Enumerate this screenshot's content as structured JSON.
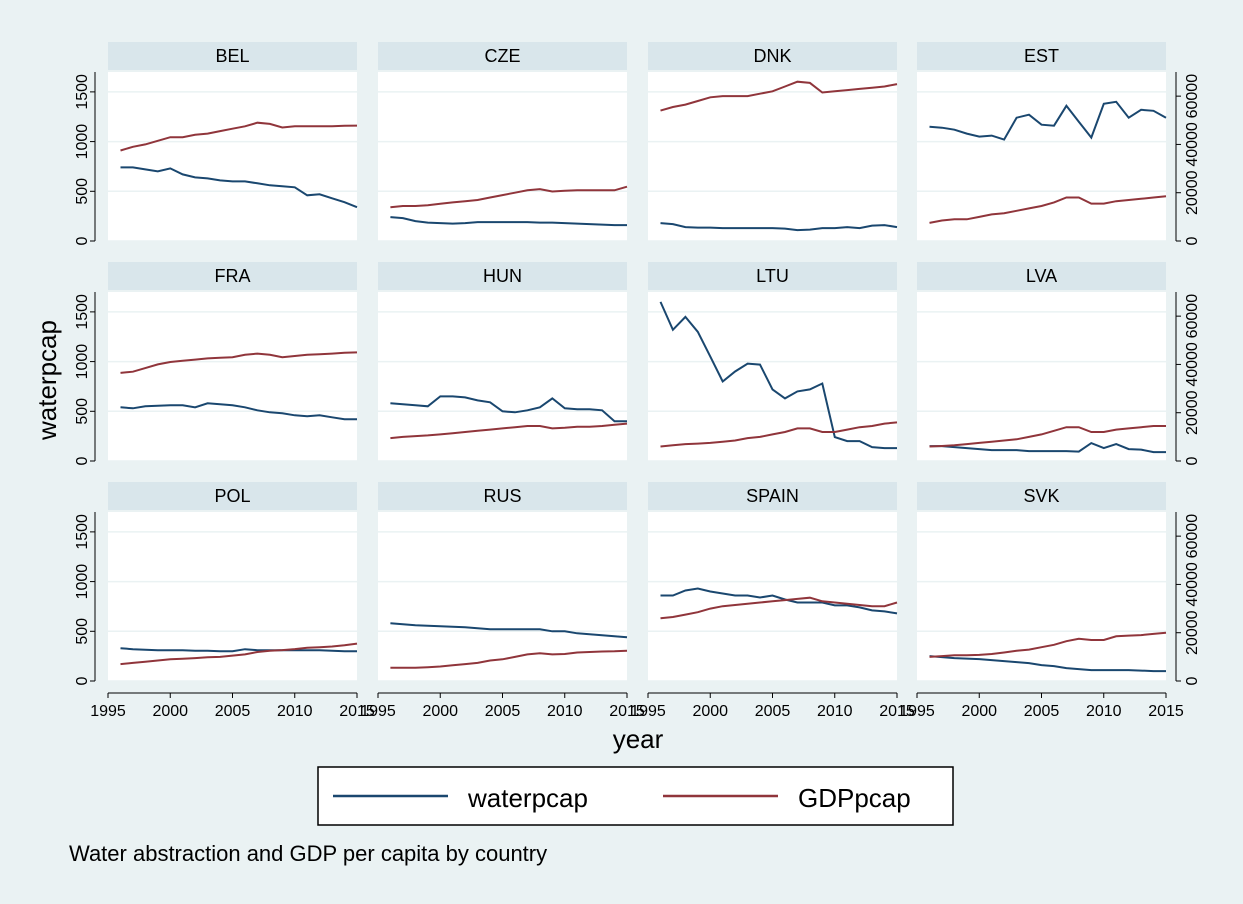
{
  "chart_data": {
    "type": "line",
    "note": "Water abstraction and GDP per capita by country",
    "xlabel": "year",
    "ylabel_left": "waterpcap",
    "xlim": [
      1995,
      2015
    ],
    "xticks": [
      1995,
      2000,
      2005,
      2010,
      2015
    ],
    "xtick_labels": [
      "1995",
      "2000",
      "2005",
      "2010",
      "2015"
    ],
    "ylim_left": [
      0,
      1700
    ],
    "yticks_left": [
      0,
      500,
      1000,
      1500
    ],
    "ytick_labels_left": [
      "0",
      "500",
      "1000",
      "1500"
    ],
    "ylim_right": [
      0,
      70000
    ],
    "yticks_right": [
      0,
      20000,
      40000,
      60000
    ],
    "ytick_labels_right": [
      "0",
      "20000",
      "40000",
      "60000"
    ],
    "legend": {
      "position": "bottom",
      "entries": [
        {
          "label": "waterpcap",
          "color": "#1a476f"
        },
        {
          "label": "GDPpcap",
          "color": "#90353b"
        }
      ]
    },
    "years": [
      1996,
      1997,
      1998,
      1999,
      2000,
      2001,
      2002,
      2003,
      2004,
      2005,
      2006,
      2007,
      2008,
      2009,
      2010,
      2011,
      2012,
      2013,
      2014,
      2015
    ],
    "panels": [
      {
        "title": "BEL",
        "water": [
          740,
          740,
          720,
          700,
          730,
          670,
          640,
          630,
          610,
          600,
          600,
          580,
          560,
          550,
          540,
          460,
          470,
          430,
          390,
          340
        ],
        "gdp": [
          37500,
          39000,
          40000,
          41500,
          43000,
          43000,
          44000,
          44500,
          45500,
          46500,
          47500,
          49000,
          48500,
          47000,
          47500,
          47500,
          47500,
          47500,
          47700,
          47800
        ]
      },
      {
        "title": "CZE",
        "water": [
          240,
          230,
          200,
          185,
          180,
          175,
          180,
          190,
          190,
          190,
          190,
          190,
          185,
          185,
          180,
          175,
          170,
          165,
          160,
          160
        ],
        "gdp": [
          14000,
          14500,
          14500,
          14800,
          15400,
          16000,
          16500,
          17000,
          18000,
          19000,
          20000,
          21000,
          21500,
          20500,
          20800,
          21000,
          21000,
          21000,
          21000,
          22500
        ]
      },
      {
        "title": "DNK",
        "water": [
          180,
          170,
          140,
          135,
          135,
          130,
          130,
          130,
          130,
          130,
          125,
          110,
          115,
          130,
          130,
          140,
          130,
          155,
          160,
          140
        ],
        "gdp": [
          54000,
          55500,
          56500,
          58000,
          59500,
          60000,
          60000,
          60000,
          61000,
          62000,
          64000,
          66000,
          65500,
          61500,
          62000,
          62500,
          63000,
          63500,
          64000,
          65000
        ]
      },
      {
        "title": "EST",
        "water": [
          1150,
          1140,
          1120,
          1080,
          1050,
          1060,
          1020,
          1240,
          1270,
          1170,
          1160,
          1360,
          1200,
          1040,
          1380,
          1400,
          1240,
          1320,
          1310,
          1240
        ],
        "gdp": [
          7500,
          8500,
          9000,
          9000,
          10000,
          11000,
          11500,
          12500,
          13500,
          14500,
          16000,
          18000,
          18000,
          15500,
          15500,
          16500,
          17000,
          17500,
          18000,
          18500
        ]
      },
      {
        "title": "FRA",
        "water": [
          540,
          530,
          550,
          555,
          560,
          560,
          540,
          580,
          570,
          560,
          540,
          510,
          490,
          480,
          460,
          450,
          460,
          440,
          420,
          420
        ],
        "gdp": [
          36500,
          37000,
          38500,
          40000,
          41000,
          41500,
          42000,
          42500,
          42800,
          43000,
          44000,
          44500,
          44000,
          43000,
          43500,
          44000,
          44200,
          44500,
          44800,
          45000
        ]
      },
      {
        "title": "HUN",
        "water": [
          580,
          570,
          560,
          550,
          650,
          650,
          640,
          610,
          590,
          500,
          490,
          510,
          540,
          630,
          530,
          520,
          520,
          510,
          400,
          400
        ],
        "gdp": [
          9500,
          10000,
          10300,
          10600,
          11000,
          11500,
          12000,
          12500,
          13000,
          13500,
          14000,
          14500,
          14500,
          13500,
          13800,
          14200,
          14200,
          14500,
          15000,
          15500
        ]
      },
      {
        "title": "LTU",
        "water": [
          1600,
          1320,
          1450,
          1300,
          1050,
          800,
          900,
          980,
          970,
          720,
          630,
          700,
          720,
          780,
          240,
          200,
          200,
          140,
          130,
          130
        ],
        "gdp": [
          6000,
          6500,
          7000,
          7200,
          7500,
          8000,
          8500,
          9500,
          10000,
          11000,
          12000,
          13500,
          13500,
          12000,
          12000,
          13000,
          14000,
          14500,
          15500,
          16000
        ]
      },
      {
        "title": "LVA",
        "water": [
          150,
          150,
          140,
          130,
          120,
          110,
          110,
          110,
          100,
          100,
          100,
          100,
          95,
          180,
          130,
          170,
          120,
          115,
          90,
          90
        ],
        "gdp": [
          6000,
          6200,
          6500,
          7000,
          7500,
          8000,
          8500,
          9000,
          10000,
          11000,
          12500,
          14000,
          14000,
          12000,
          12000,
          13000,
          13500,
          14000,
          14500,
          14500
        ]
      },
      {
        "title": "POL",
        "water": [
          330,
          320,
          315,
          310,
          310,
          310,
          305,
          305,
          300,
          300,
          320,
          310,
          310,
          310,
          310,
          310,
          310,
          305,
          300,
          300
        ],
        "gdp": [
          7000,
          7500,
          8000,
          8500,
          9000,
          9200,
          9500,
          9800,
          10000,
          10500,
          11000,
          12000,
          12500,
          12800,
          13200,
          13800,
          14000,
          14300,
          14800,
          15500
        ]
      },
      {
        "title": "RUS",
        "water": [
          580,
          570,
          560,
          555,
          550,
          545,
          540,
          530,
          520,
          520,
          520,
          520,
          520,
          500,
          500,
          480,
          470,
          460,
          450,
          440
        ],
        "gdp": [
          5500,
          5500,
          5500,
          5700,
          6000,
          6500,
          7000,
          7500,
          8500,
          9000,
          10000,
          11000,
          11500,
          11000,
          11200,
          11800,
          12000,
          12200,
          12300,
          12500
        ]
      },
      {
        "title": "SPAIN",
        "water": [
          860,
          860,
          910,
          930,
          900,
          880,
          860,
          860,
          840,
          860,
          820,
          790,
          790,
          790,
          760,
          760,
          740,
          710,
          700,
          680
        ],
        "gdp": [
          26000,
          26500,
          27500,
          28500,
          30000,
          31000,
          31500,
          32000,
          32500,
          33000,
          33500,
          34000,
          34500,
          33000,
          32500,
          32000,
          31500,
          31000,
          31000,
          32500
        ]
      },
      {
        "title": "SVK",
        "water": [
          250,
          240,
          230,
          225,
          220,
          210,
          200,
          190,
          180,
          160,
          150,
          130,
          120,
          110,
          110,
          110,
          110,
          105,
          100,
          100
        ],
        "gdp": [
          10000,
          10300,
          10700,
          10700,
          10800,
          11200,
          11800,
          12500,
          13000,
          14000,
          15000,
          16500,
          17500,
          17000,
          17000,
          18500,
          18800,
          19000,
          19500,
          20000
        ]
      }
    ]
  }
}
